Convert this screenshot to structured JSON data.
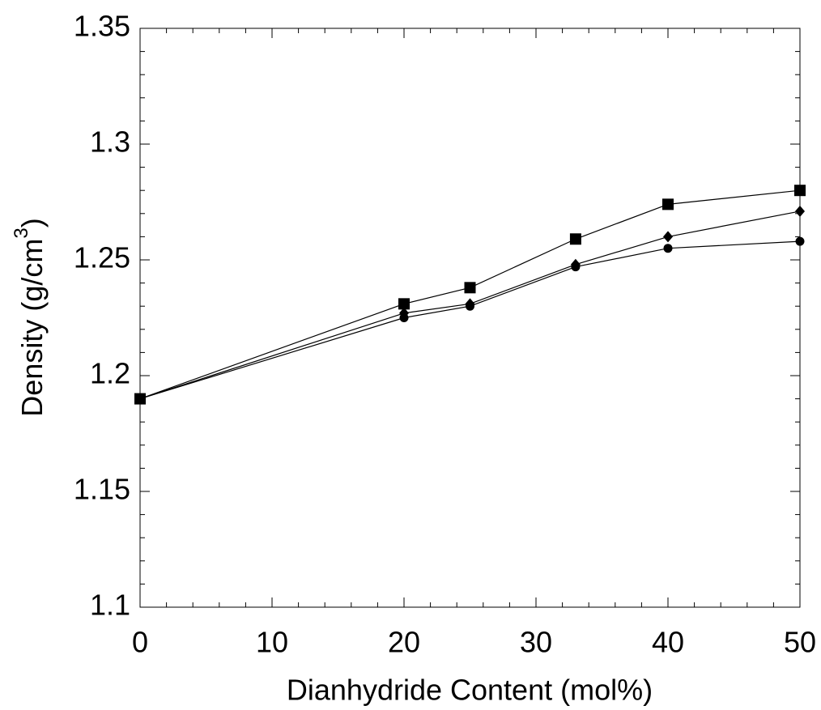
{
  "chart_data": {
    "type": "line",
    "xlabel": "Dianhydride Content (mol%)",
    "ylabel_parts": [
      "Density (g/cm",
      "3",
      ")"
    ],
    "x": [
      0,
      20,
      25,
      33,
      40,
      50
    ],
    "series": [
      {
        "color": "#000000",
        "marker": "square",
        "values": [
          1.19,
          1.231,
          1.238,
          1.259,
          1.274,
          1.28
        ]
      },
      {
        "color": "#000000",
        "marker": "diamond",
        "values": [
          1.19,
          1.227,
          1.231,
          1.248,
          1.26,
          1.271
        ]
      },
      {
        "color": "#000000",
        "marker": "circle",
        "values": [
          1.19,
          1.225,
          1.23,
          1.247,
          1.255,
          1.258
        ]
      }
    ],
    "xlim": [
      0,
      50
    ],
    "xticks": [
      0,
      10,
      20,
      30,
      40,
      50
    ],
    "ylim": [
      1.1,
      1.35
    ],
    "yticks": [
      1.1,
      1.15,
      1.2,
      1.25,
      1.3,
      1.35
    ],
    "grid": false
  }
}
